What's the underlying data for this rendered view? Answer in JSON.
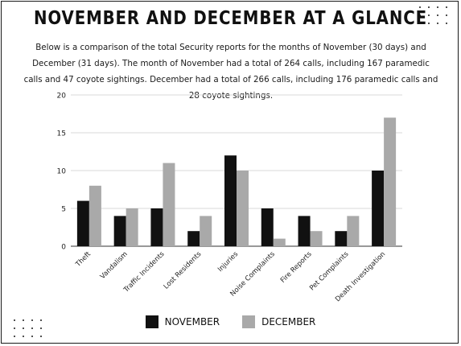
{
  "title": "NOVEMBER AND DECEMBER AT A GLANCE",
  "description": "Below is a comparison of the total Security reports for the months of  November (30 days) and December (31 days).  The  month of November had a total of 264 calls, including 167 paramedic calls and 47 coyote sightings. December had a total of 266 calls, including 176 paramedic calls and 28 coyote sightings.",
  "colors": {
    "november": "#111111",
    "december": "#a9a9a9",
    "grid": "#d9d9d9",
    "axis": "#333333"
  },
  "chart_data": {
    "type": "bar",
    "title": "",
    "xlabel": "",
    "ylabel": "",
    "ylim": [
      0,
      20
    ],
    "yticks": [
      0,
      5,
      10,
      15,
      20
    ],
    "grid": true,
    "legend_position": "bottom",
    "categories": [
      "Theft",
      "Vandalism",
      "Traffic Incidents",
      "Lost Residents",
      "Injuries",
      "Noise Complaints",
      "Fire Reports",
      "Pet Complaints",
      "Death Investigation"
    ],
    "series": [
      {
        "name": "NOVEMBER",
        "values": [
          6,
          4,
          5,
          2,
          12,
          5,
          4,
          2,
          10
        ]
      },
      {
        "name": "DECEMBER",
        "values": [
          8,
          5,
          11,
          4,
          10,
          1,
          2,
          4,
          17
        ]
      }
    ]
  }
}
